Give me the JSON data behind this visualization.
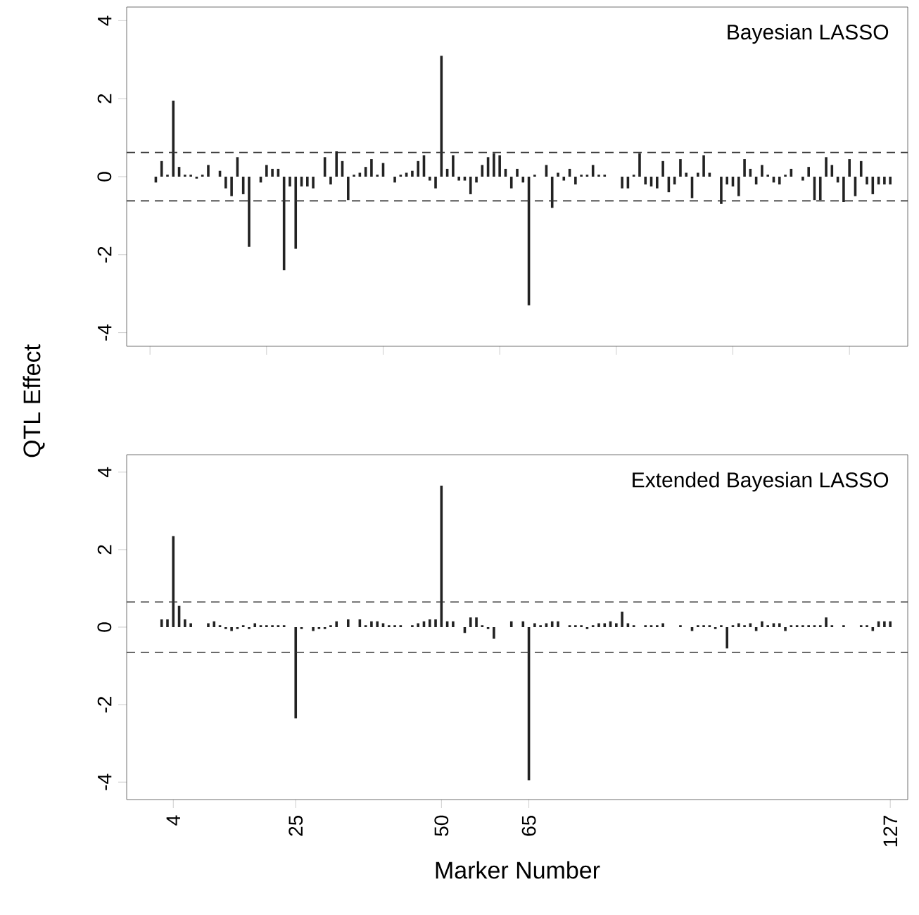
{
  "chart_data": [
    {
      "type": "bar",
      "ylabel": "QTL  Effect",
      "annotations": [
        "Bayesian LASSO"
      ],
      "color": "#222222",
      "x": [
        1,
        2,
        3,
        4,
        5,
        6,
        7,
        8,
        9,
        10,
        11,
        12,
        13,
        14,
        15,
        16,
        17,
        18,
        19,
        20,
        21,
        22,
        23,
        24,
        25,
        26,
        27,
        28,
        29,
        30,
        31,
        32,
        33,
        34,
        35,
        36,
        37,
        38,
        39,
        40,
        41,
        42,
        43,
        44,
        45,
        46,
        47,
        48,
        49,
        50,
        51,
        52,
        53,
        54,
        55,
        56,
        57,
        58,
        59,
        60,
        61,
        62,
        63,
        64,
        65,
        66,
        67,
        68,
        69,
        70,
        71,
        72,
        73,
        74,
        75,
        76,
        77,
        78,
        79,
        80,
        81,
        82,
        83,
        84,
        85,
        86,
        87,
        88,
        89,
        90,
        91,
        92,
        93,
        94,
        95,
        96,
        97,
        98,
        99,
        100,
        101,
        102,
        103,
        104,
        105,
        106,
        107,
        108,
        109,
        110,
        111,
        112,
        113,
        114,
        115,
        116,
        117,
        118,
        119,
        120,
        121,
        122,
        123,
        124,
        125,
        126,
        127
      ],
      "values": [
        -0.15,
        0.4,
        0.05,
        1.95,
        0.25,
        0.05,
        0.05,
        -0.05,
        0.05,
        0.3,
        0,
        0.15,
        -0.3,
        -0.5,
        0.5,
        -0.45,
        -1.8,
        0,
        -0.15,
        0.3,
        0.2,
        0.2,
        -2.4,
        -0.25,
        -1.85,
        -0.25,
        -0.25,
        -0.3,
        0,
        0.5,
        -0.2,
        0.65,
        0.4,
        -0.6,
        0.05,
        0.1,
        0.25,
        0.45,
        0.05,
        0.35,
        0,
        -0.15,
        0.05,
        0.1,
        0.15,
        0.4,
        0.55,
        -0.1,
        -0.3,
        3.1,
        0.2,
        0.55,
        -0.1,
        -0.1,
        -0.45,
        -0.15,
        0.3,
        0.5,
        0.6,
        0.55,
        0.2,
        -0.3,
        0.2,
        -0.15,
        -3.3,
        0.05,
        0,
        0.3,
        -0.8,
        0.1,
        -0.1,
        0.2,
        -0.2,
        0.05,
        0.05,
        0.3,
        0.05,
        0.05,
        0,
        0,
        -0.3,
        -0.3,
        0.05,
        0.6,
        -0.2,
        -0.25,
        -0.3,
        0.4,
        -0.4,
        -0.2,
        0.45,
        0.1,
        -0.55,
        0.1,
        0.55,
        0.1,
        0,
        -0.7,
        -0.2,
        -0.25,
        -0.5,
        0.45,
        0.2,
        -0.2,
        0.3,
        0.05,
        -0.15,
        -0.2,
        0.05,
        0.2,
        0,
        -0.1,
        0.25,
        -0.6,
        -0.6,
        0.5,
        0.3,
        -0.15,
        -0.65,
        0.45,
        -0.5,
        0.4,
        -0.2,
        -0.45,
        -0.2,
        -0.2,
        -0.2
      ],
      "xlim": [
        -4,
        130
      ],
      "ylim": [
        -4.35,
        4.35
      ],
      "xticks": [
        {
          "value": 0,
          "label": null
        },
        {
          "value": 20,
          "label": null
        },
        {
          "value": 40,
          "label": null
        },
        {
          "value": 60,
          "label": null
        },
        {
          "value": 80,
          "label": null
        },
        {
          "value": 100,
          "label": null
        },
        {
          "value": 120,
          "label": null
        }
      ],
      "yticks": [
        -4,
        -2,
        0,
        2,
        4
      ],
      "tick_labels": "y",
      "ref_lines": [
        {
          "axis": "y",
          "value": 0.62,
          "line_style": "dashed",
          "color": "#333333"
        },
        {
          "axis": "y",
          "value": -0.62,
          "line_style": "dashed",
          "color": "#333333"
        }
      ]
    },
    {
      "type": "bar",
      "xlabel": "Marker  Number",
      "annotations": [
        "Extended Bayesian LASSO"
      ],
      "color": "#222222",
      "x": [
        1,
        2,
        3,
        4,
        5,
        6,
        7,
        8,
        9,
        10,
        11,
        12,
        13,
        14,
        15,
        16,
        17,
        18,
        19,
        20,
        21,
        22,
        23,
        24,
        25,
        26,
        27,
        28,
        29,
        30,
        31,
        32,
        33,
        34,
        35,
        36,
        37,
        38,
        39,
        40,
        41,
        42,
        43,
        44,
        45,
        46,
        47,
        48,
        49,
        50,
        51,
        52,
        53,
        54,
        55,
        56,
        57,
        58,
        59,
        60,
        61,
        62,
        63,
        64,
        65,
        66,
        67,
        68,
        69,
        70,
        71,
        72,
        73,
        74,
        75,
        76,
        77,
        78,
        79,
        80,
        81,
        82,
        83,
        84,
        85,
        86,
        87,
        88,
        89,
        90,
        91,
        92,
        93,
        94,
        95,
        96,
        97,
        98,
        99,
        100,
        101,
        102,
        103,
        104,
        105,
        106,
        107,
        108,
        109,
        110,
        111,
        112,
        113,
        114,
        115,
        116,
        117,
        118,
        119,
        120,
        121,
        122,
        123,
        124,
        125,
        126,
        127
      ],
      "values": [
        0,
        0.2,
        0.2,
        2.35,
        0.55,
        0.2,
        0.1,
        0,
        0,
        0.1,
        0.15,
        0.05,
        -0.05,
        -0.1,
        -0.05,
        0.05,
        -0.05,
        0.1,
        0.05,
        0.05,
        0.05,
        0.05,
        0.05,
        0,
        -2.35,
        -0.05,
        0,
        -0.1,
        -0.05,
        -0.05,
        0.05,
        0.15,
        0,
        0.2,
        0,
        0.2,
        0.05,
        0.15,
        0.15,
        0.1,
        0.05,
        0.05,
        0.05,
        0,
        0.05,
        0.1,
        0.15,
        0.2,
        0.2,
        3.65,
        0.15,
        0.15,
        0,
        -0.15,
        0.25,
        0.25,
        0.05,
        -0.05,
        -0.3,
        0,
        0,
        0.15,
        0,
        0.15,
        -3.95,
        0.1,
        0.05,
        0.1,
        0.15,
        0.15,
        0,
        0.05,
        0.05,
        0.05,
        -0.05,
        0.05,
        0.1,
        0.1,
        0.15,
        0.1,
        0.4,
        0.1,
        0.05,
        0,
        0.05,
        0.05,
        0.05,
        0.1,
        0,
        0,
        0.05,
        0,
        -0.1,
        0.05,
        0.05,
        0.05,
        -0.05,
        0.05,
        -0.55,
        0.05,
        0.1,
        0.05,
        0.1,
        -0.1,
        0.15,
        0.05,
        0.1,
        0.1,
        -0.1,
        0.05,
        0.05,
        0.05,
        0.05,
        0.05,
        0.05,
        0.25,
        0.05,
        0,
        0.05,
        0,
        0,
        0.05,
        0.05,
        -0.1,
        0.15,
        0.15,
        0.15
      ],
      "xlim": [
        -4,
        130
      ],
      "ylim": [
        -4.45,
        4.45
      ],
      "xticks": [
        4,
        25,
        50,
        65,
        127
      ],
      "yticks": [
        -4,
        -2,
        0,
        2,
        4
      ],
      "ref_lines": [
        {
          "axis": "y",
          "value": 0.65,
          "line_style": "dashed",
          "color": "#333333"
        },
        {
          "axis": "y",
          "value": -0.65,
          "line_style": "dashed",
          "color": "#333333"
        }
      ]
    }
  ]
}
